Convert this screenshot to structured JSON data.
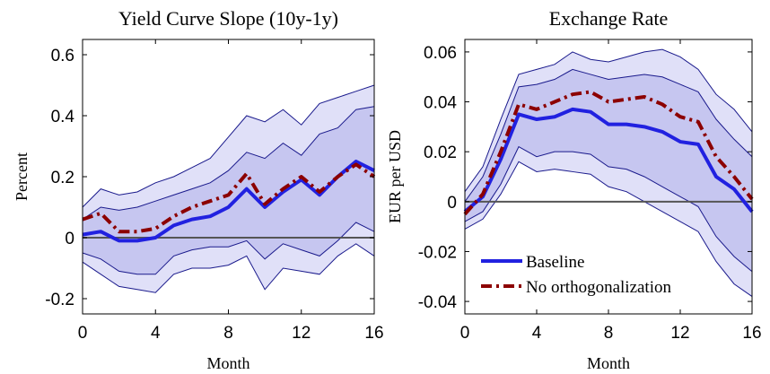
{
  "colors": {
    "band_outer": "#e0e0f8",
    "band_inner": "#c6c6f0",
    "band_edge": "#1a1a8c",
    "baseline": "#2121e0",
    "no_orth": "#8c0000",
    "zero_line": "#555555"
  },
  "chart_data": [
    {
      "type": "line",
      "title": "Yield Curve Slope (10y-1y)",
      "xlabel": "Month",
      "ylabel": "Percent",
      "xlim": [
        0,
        16
      ],
      "ylim": [
        -0.25,
        0.65
      ],
      "xticks": [
        0,
        4,
        8,
        12,
        16
      ],
      "yticks": [
        -0.2,
        0,
        0.2,
        0.4,
        0.6
      ],
      "ytick_labels": [
        "-0.2",
        "0",
        "0.2",
        "0.4",
        "0.6"
      ],
      "x": [
        0,
        1,
        2,
        3,
        4,
        5,
        6,
        7,
        8,
        9,
        10,
        11,
        12,
        13,
        14,
        15,
        16
      ],
      "grid": false,
      "legend": null,
      "bands": [
        {
          "level": "outer",
          "lower": [
            -0.08,
            -0.12,
            -0.16,
            -0.17,
            -0.18,
            -0.12,
            -0.1,
            -0.1,
            -0.09,
            -0.06,
            -0.17,
            -0.1,
            -0.11,
            -0.12,
            -0.06,
            -0.02,
            -0.06
          ],
          "upper": [
            0.1,
            0.16,
            0.14,
            0.15,
            0.18,
            0.2,
            0.23,
            0.26,
            0.33,
            0.4,
            0.38,
            0.42,
            0.37,
            0.44,
            0.46,
            0.48,
            0.5
          ]
        },
        {
          "level": "inner",
          "lower": [
            -0.05,
            -0.07,
            -0.11,
            -0.12,
            -0.12,
            -0.06,
            -0.04,
            -0.03,
            -0.03,
            -0.01,
            -0.07,
            -0.02,
            -0.04,
            -0.06,
            -0.01,
            0.05,
            0.02
          ],
          "upper": [
            0.06,
            0.1,
            0.09,
            0.1,
            0.12,
            0.14,
            0.16,
            0.18,
            0.22,
            0.28,
            0.26,
            0.31,
            0.27,
            0.34,
            0.36,
            0.42,
            0.43
          ]
        }
      ],
      "series": [
        {
          "name": "Baseline",
          "values": [
            0.01,
            0.02,
            -0.01,
            -0.01,
            0.0,
            0.04,
            0.06,
            0.07,
            0.1,
            0.16,
            0.1,
            0.15,
            0.19,
            0.14,
            0.2,
            0.25,
            0.22
          ]
        },
        {
          "name": "No orthogonalization",
          "values": [
            0.06,
            0.08,
            0.02,
            0.02,
            0.03,
            0.07,
            0.1,
            0.12,
            0.14,
            0.21,
            0.11,
            0.16,
            0.2,
            0.15,
            0.2,
            0.24,
            0.2
          ]
        }
      ],
      "zero_line": 0
    },
    {
      "type": "line",
      "title": "Exchange Rate",
      "xlabel": "Month",
      "ylabel": "EUR per USD",
      "xlim": [
        0,
        16
      ],
      "ylim": [
        -0.045,
        0.065
      ],
      "xticks": [
        0,
        4,
        8,
        12,
        16
      ],
      "yticks": [
        -0.04,
        -0.02,
        0,
        0.02,
        0.04,
        0.06
      ],
      "ytick_labels": [
        "-0.04",
        "-0.02",
        "0",
        "0.02",
        "0.04",
        "0.06"
      ],
      "x": [
        0,
        1,
        2,
        3,
        4,
        5,
        6,
        7,
        8,
        9,
        10,
        11,
        12,
        13,
        14,
        15,
        16
      ],
      "grid": false,
      "legend": "bottom-left",
      "bands": [
        {
          "level": "outer",
          "lower": [
            -0.011,
            -0.007,
            0.003,
            0.016,
            0.012,
            0.013,
            0.012,
            0.011,
            0.006,
            0.004,
            0.0,
            -0.004,
            -0.008,
            -0.012,
            -0.024,
            -0.033,
            -0.038
          ],
          "upper": [
            0.004,
            0.014,
            0.033,
            0.051,
            0.053,
            0.055,
            0.06,
            0.057,
            0.056,
            0.058,
            0.06,
            0.061,
            0.058,
            0.053,
            0.043,
            0.037,
            0.028
          ]
        },
        {
          "level": "inner",
          "lower": [
            -0.008,
            -0.004,
            0.007,
            0.022,
            0.018,
            0.02,
            0.02,
            0.019,
            0.014,
            0.013,
            0.01,
            0.006,
            0.002,
            -0.002,
            -0.014,
            -0.022,
            -0.028
          ],
          "upper": [
            0.0,
            0.01,
            0.027,
            0.046,
            0.047,
            0.049,
            0.053,
            0.051,
            0.049,
            0.05,
            0.051,
            0.05,
            0.047,
            0.044,
            0.033,
            0.025,
            0.018
          ]
        }
      ],
      "series": [
        {
          "name": "Baseline",
          "values": [
            -0.004,
            0.002,
            0.017,
            0.035,
            0.033,
            0.034,
            0.037,
            0.036,
            0.031,
            0.031,
            0.03,
            0.028,
            0.024,
            0.023,
            0.01,
            0.005,
            -0.004
          ]
        },
        {
          "name": "No orthogonalization",
          "values": [
            -0.005,
            0.003,
            0.02,
            0.039,
            0.037,
            0.04,
            0.043,
            0.044,
            0.04,
            0.041,
            0.042,
            0.039,
            0.034,
            0.032,
            0.018,
            0.01,
            0.001
          ]
        }
      ],
      "zero_line": 0
    }
  ]
}
